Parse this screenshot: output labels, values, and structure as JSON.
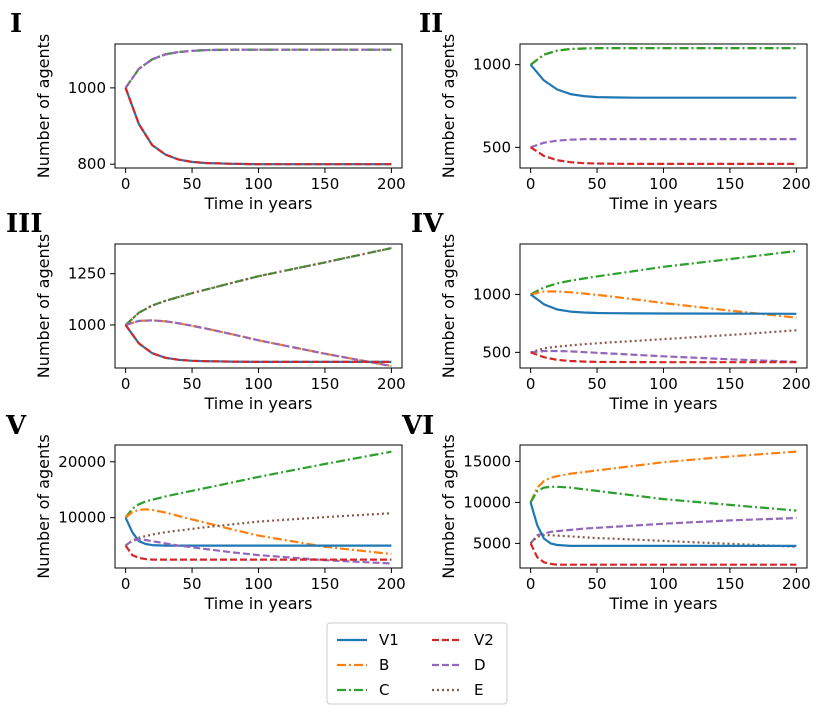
{
  "series_styles": [
    {
      "name": "V1",
      "color": "#1f77b4",
      "dash": "solid"
    },
    {
      "name": "B",
      "color": "#ff7f0e",
      "dash": "dashdot"
    },
    {
      "name": "C",
      "color": "#2ca02c",
      "dash": "dashdot"
    },
    {
      "name": "V2",
      "color": "#d62728",
      "dash": "dashed"
    },
    {
      "name": "D",
      "color": "#9467bd",
      "dash": "dashed"
    },
    {
      "name": "E",
      "color": "#8c564b",
      "dash": "dotted"
    }
  ],
  "chart_data": [
    {
      "panel": "I",
      "type": "line",
      "xlabel": "Time in years",
      "ylabel": "Number of agents",
      "xlim": [
        -8,
        208
      ],
      "ylim": [
        790,
        1115
      ],
      "xticks": [
        0,
        50,
        100,
        150,
        200
      ],
      "yticks": [
        800,
        1000
      ],
      "ytick_labels": [
        "800",
        "1000"
      ],
      "x": [
        0,
        10,
        20,
        30,
        40,
        50,
        60,
        80,
        100,
        150,
        200
      ],
      "series": [
        {
          "name": "B",
          "values": [
            1000,
            1050,
            1075,
            1088,
            1094,
            1097,
            1099,
            1100,
            1100,
            1100,
            1100
          ]
        },
        {
          "name": "C",
          "values": [
            1000,
            1050,
            1075,
            1088,
            1094,
            1097,
            1099,
            1100,
            1100,
            1100,
            1100
          ]
        },
        {
          "name": "D",
          "values": [
            1000,
            1050,
            1075,
            1088,
            1094,
            1097,
            1099,
            1100,
            1100,
            1100,
            1100
          ]
        },
        {
          "name": "V1",
          "values": [
            1000,
            905,
            850,
            825,
            812,
            806,
            803,
            801,
            800,
            800,
            800
          ]
        },
        {
          "name": "V2",
          "values": [
            1000,
            905,
            850,
            825,
            812,
            806,
            803,
            801,
            800,
            800,
            800
          ]
        }
      ]
    },
    {
      "panel": "II",
      "type": "line",
      "xlabel": "Time in years",
      "ylabel": "Number of agents",
      "xlim": [
        -8,
        208
      ],
      "ylim": [
        375,
        1125
      ],
      "xticks": [
        0,
        50,
        100,
        150,
        200
      ],
      "yticks": [
        500,
        1000
      ],
      "ytick_labels": [
        "500",
        "1000"
      ],
      "x": [
        0,
        10,
        20,
        30,
        40,
        50,
        60,
        80,
        100,
        150,
        200
      ],
      "series": [
        {
          "name": "B",
          "values": [
            1000,
            1060,
            1085,
            1095,
            1098,
            1100,
            1100,
            1100,
            1100,
            1100,
            1100
          ]
        },
        {
          "name": "C",
          "values": [
            1000,
            1060,
            1085,
            1095,
            1098,
            1100,
            1100,
            1100,
            1100,
            1100,
            1100
          ]
        },
        {
          "name": "V1",
          "values": [
            1000,
            905,
            850,
            822,
            810,
            804,
            802,
            800,
            800,
            800,
            800
          ]
        },
        {
          "name": "D",
          "values": [
            500,
            528,
            541,
            546,
            549,
            550,
            550,
            550,
            550,
            550,
            550
          ]
        },
        {
          "name": "V2",
          "values": [
            500,
            448,
            422,
            410,
            404,
            402,
            401,
            400,
            400,
            400,
            400
          ]
        }
      ]
    },
    {
      "panel": "III",
      "type": "line",
      "xlabel": "Time in years",
      "ylabel": "Number of agents",
      "xlim": [
        -8,
        208
      ],
      "ylim": [
        790,
        1395
      ],
      "xticks": [
        0,
        50,
        100,
        150,
        200
      ],
      "yticks": [
        1000,
        1250
      ],
      "ytick_labels": [
        "1000",
        "1250"
      ],
      "x": [
        0,
        10,
        20,
        30,
        40,
        50,
        60,
        80,
        100,
        150,
        200
      ],
      "series": [
        {
          "name": "C",
          "values": [
            1000,
            1060,
            1095,
            1118,
            1137,
            1155,
            1172,
            1205,
            1238,
            1305,
            1375
          ]
        },
        {
          "name": "E",
          "values": [
            1000,
            1060,
            1095,
            1118,
            1137,
            1155,
            1172,
            1205,
            1238,
            1305,
            1375
          ]
        },
        {
          "name": "B",
          "values": [
            1000,
            1020,
            1022,
            1018,
            1008,
            996,
            983,
            955,
            925,
            860,
            800
          ]
        },
        {
          "name": "D",
          "values": [
            1000,
            1020,
            1022,
            1018,
            1008,
            996,
            983,
            955,
            925,
            860,
            800
          ]
        },
        {
          "name": "V1",
          "values": [
            1000,
            910,
            862,
            840,
            830,
            825,
            823,
            821,
            820,
            820,
            820
          ]
        },
        {
          "name": "V2",
          "values": [
            1000,
            910,
            862,
            840,
            830,
            825,
            823,
            821,
            820,
            820,
            820
          ]
        }
      ]
    },
    {
      "panel": "IV",
      "type": "line",
      "xlabel": "Time in years",
      "ylabel": "Number of agents",
      "xlim": [
        -8,
        208
      ],
      "ylim": [
        365,
        1435
      ],
      "xticks": [
        0,
        50,
        100,
        150,
        200
      ],
      "yticks": [
        500,
        1000
      ],
      "ytick_labels": [
        "500",
        "1000"
      ],
      "x": [
        0,
        10,
        20,
        30,
        40,
        50,
        60,
        80,
        100,
        150,
        200
      ],
      "series": [
        {
          "name": "C",
          "values": [
            1000,
            1060,
            1095,
            1118,
            1137,
            1155,
            1172,
            1205,
            1238,
            1305,
            1375
          ]
        },
        {
          "name": "B",
          "values": [
            1000,
            1025,
            1025,
            1018,
            1008,
            996,
            983,
            955,
            925,
            860,
            800
          ]
        },
        {
          "name": "V1",
          "values": [
            1000,
            915,
            870,
            852,
            844,
            840,
            838,
            836,
            835,
            834,
            833
          ]
        },
        {
          "name": "E",
          "values": [
            500,
            535,
            550,
            560,
            570,
            578,
            586,
            600,
            614,
            650,
            690
          ]
        },
        {
          "name": "D",
          "values": [
            500,
            512,
            512,
            508,
            502,
            496,
            490,
            478,
            466,
            440,
            418
          ]
        },
        {
          "name": "V2",
          "values": [
            500,
            458,
            435,
            425,
            420,
            418,
            417,
            416,
            415,
            415,
            415
          ]
        }
      ]
    },
    {
      "panel": "V",
      "type": "line",
      "xlabel": "Time in years",
      "ylabel": "Number of agents",
      "xlim": [
        -8,
        208
      ],
      "ylim": [
        1000,
        23000
      ],
      "xticks": [
        0,
        50,
        100,
        150,
        200
      ],
      "yticks": [
        10000,
        20000
      ],
      "ytick_labels": [
        "10000",
        "20000"
      ],
      "x": [
        0,
        5,
        10,
        15,
        20,
        30,
        40,
        50,
        60,
        80,
        100,
        150,
        200
      ],
      "series": [
        {
          "name": "C",
          "values": [
            10000,
            11600,
            12400,
            12900,
            13200,
            13800,
            14300,
            14800,
            15300,
            16300,
            17300,
            19600,
            21800
          ]
        },
        {
          "name": "B",
          "values": [
            10000,
            11000,
            11400,
            11500,
            11400,
            10900,
            10300,
            9700,
            9100,
            7900,
            6800,
            4800,
            3500
          ]
        },
        {
          "name": "V1",
          "values": [
            10000,
            7400,
            5800,
            5300,
            5100,
            5000,
            5000,
            5000,
            5000,
            5000,
            5000,
            5000,
            5000
          ]
        },
        {
          "name": "E",
          "values": [
            5000,
            5900,
            6400,
            6700,
            7000,
            7400,
            7700,
            8000,
            8300,
            8800,
            9300,
            10100,
            10800
          ]
        },
        {
          "name": "D",
          "values": [
            5000,
            5900,
            6100,
            6000,
            5800,
            5400,
            5000,
            4700,
            4400,
            3800,
            3300,
            2400,
            1800
          ]
        },
        {
          "name": "V2",
          "values": [
            5000,
            3300,
            2800,
            2600,
            2500,
            2500,
            2500,
            2500,
            2500,
            2500,
            2500,
            2500,
            2500
          ]
        }
      ]
    },
    {
      "panel": "VI",
      "type": "line",
      "xlabel": "Time in years",
      "ylabel": "Number of agents",
      "xlim": [
        -8,
        208
      ],
      "ylim": [
        2000,
        17000
      ],
      "xticks": [
        0,
        50,
        100,
        150,
        200
      ],
      "yticks": [
        5000,
        10000,
        15000
      ],
      "ytick_labels": [
        "5000",
        "10000",
        "15000"
      ],
      "x": [
        0,
        5,
        10,
        15,
        20,
        30,
        40,
        50,
        60,
        80,
        100,
        150,
        200
      ],
      "series": [
        {
          "name": "B",
          "values": [
            10000,
            11800,
            12600,
            13000,
            13200,
            13500,
            13700,
            13900,
            14100,
            14500,
            14900,
            15600,
            16200
          ]
        },
        {
          "name": "C",
          "values": [
            10000,
            11400,
            11800,
            11900,
            11900,
            11800,
            11600,
            11400,
            11200,
            10800,
            10400,
            9700,
            9000
          ]
        },
        {
          "name": "D",
          "values": [
            5000,
            6000,
            6200,
            6400,
            6500,
            6650,
            6800,
            6900,
            7000,
            7200,
            7400,
            7800,
            8100
          ]
        },
        {
          "name": "E",
          "values": [
            5000,
            5800,
            6000,
            6000,
            5950,
            5850,
            5750,
            5650,
            5600,
            5450,
            5300,
            4950,
            4600
          ]
        },
        {
          "name": "V1",
          "values": [
            10000,
            7200,
            5600,
            5000,
            4800,
            4700,
            4700,
            4700,
            4700,
            4700,
            4700,
            4700,
            4700
          ]
        },
        {
          "name": "V2",
          "values": [
            5000,
            3300,
            2700,
            2500,
            2400,
            2400,
            2400,
            2400,
            2400,
            2400,
            2400,
            2400,
            2400
          ]
        }
      ]
    }
  ],
  "legend": {
    "position": "bottom-center",
    "columns": [
      [
        "V1",
        "B",
        "C"
      ],
      [
        "V2",
        "D",
        "E"
      ]
    ]
  }
}
